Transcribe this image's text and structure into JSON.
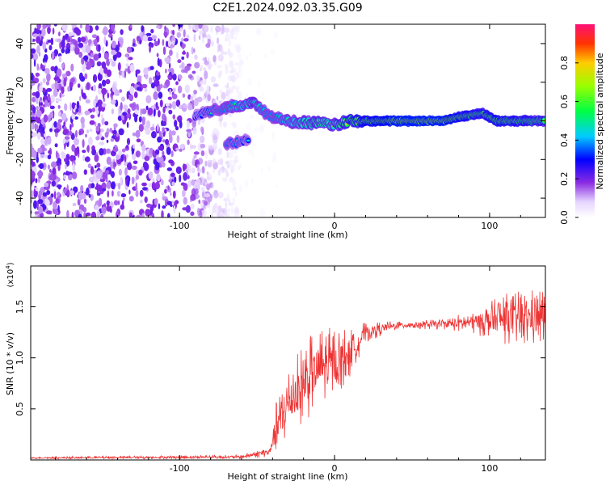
{
  "title": "C2E1.2024.092.03.35.G09",
  "chart_data": [
    {
      "type": "heatmap",
      "xlabel": "Height of straight line (km)",
      "ylabel": "Frequency (Hz)",
      "xlim": [
        -196,
        136
      ],
      "ylim": [
        -50,
        50
      ],
      "xticks": [
        -100,
        0,
        100
      ],
      "yticks": [
        -40,
        -20,
        0,
        20,
        40
      ],
      "colorbar": {
        "label": "Normalized spectral amplitude",
        "range": [
          0,
          1
        ],
        "ticks": [
          "0.0",
          "0.2",
          "0.4",
          "0.6",
          "0.8"
        ]
      },
      "grid": false,
      "noise_region": {
        "x_range": [
          -196,
          -60
        ],
        "y_range": [
          -50,
          50
        ]
      },
      "track": [
        {
          "x": -90,
          "y": 3,
          "amp": 0.35
        },
        {
          "x": -80,
          "y": 5,
          "amp": 0.45
        },
        {
          "x": -70,
          "y": 7,
          "amp": 0.5
        },
        {
          "x": -60,
          "y": 8,
          "amp": 0.55
        },
        {
          "x": -52,
          "y": 9,
          "amp": 0.6
        },
        {
          "x": -46,
          "y": 5,
          "amp": 0.5
        },
        {
          "x": -40,
          "y": 2,
          "amp": 0.5
        },
        {
          "x": -30,
          "y": 0,
          "amp": 0.55
        },
        {
          "x": -20,
          "y": -1,
          "amp": 0.6
        },
        {
          "x": -10,
          "y": -1,
          "amp": 0.65
        },
        {
          "x": 0,
          "y": -2,
          "amp": 0.6
        },
        {
          "x": 10,
          "y": 0,
          "amp": 0.75
        },
        {
          "x": 40,
          "y": 0,
          "amp": 0.9
        },
        {
          "x": 70,
          "y": 0,
          "amp": 0.9
        },
        {
          "x": 80,
          "y": 2,
          "amp": 0.8
        },
        {
          "x": 95,
          "y": 4,
          "amp": 0.75
        },
        {
          "x": 105,
          "y": 0,
          "amp": 0.8
        },
        {
          "x": 136,
          "y": 0,
          "amp": 0.7
        }
      ],
      "secondary_track": [
        {
          "x": -70,
          "y": -12,
          "amp": 0.45
        },
        {
          "x": -62,
          "y": -11,
          "amp": 0.45
        },
        {
          "x": -55,
          "y": -10,
          "amp": 0.4
        }
      ]
    },
    {
      "type": "line",
      "xlabel": "Height of straight line (km)",
      "ylabel": "SNR (10 * v/v)",
      "y_multiplier": "(x10",
      "y_multiplier_exp": "4",
      "y_multiplier_close": ")",
      "xlim": [
        -196,
        136
      ],
      "ylim": [
        0.0,
        1.9
      ],
      "xticks": [
        -100,
        0,
        100
      ],
      "yticks": [
        "0.5",
        "1.0",
        "1.5"
      ],
      "grid": false,
      "series_color": "#ee3333",
      "envelope": [
        {
          "x": -196,
          "mean": 0.02,
          "spread": 0.01
        },
        {
          "x": -60,
          "mean": 0.03,
          "spread": 0.02
        },
        {
          "x": -42,
          "mean": 0.08,
          "spread": 0.05
        },
        {
          "x": -38,
          "mean": 0.3,
          "spread": 0.25
        },
        {
          "x": -30,
          "mean": 0.55,
          "spread": 0.35
        },
        {
          "x": -20,
          "mean": 0.75,
          "spread": 0.4
        },
        {
          "x": -10,
          "mean": 0.9,
          "spread": 0.4
        },
        {
          "x": 0,
          "mean": 0.95,
          "spread": 0.35
        },
        {
          "x": 10,
          "mean": 1.05,
          "spread": 0.25
        },
        {
          "x": 20,
          "mean": 1.25,
          "spread": 0.1
        },
        {
          "x": 40,
          "mean": 1.32,
          "spread": 0.04
        },
        {
          "x": 70,
          "mean": 1.33,
          "spread": 0.05
        },
        {
          "x": 90,
          "mean": 1.35,
          "spread": 0.12
        },
        {
          "x": 110,
          "mean": 1.38,
          "spread": 0.25
        },
        {
          "x": 136,
          "mean": 1.4,
          "spread": 0.3
        }
      ]
    }
  ]
}
